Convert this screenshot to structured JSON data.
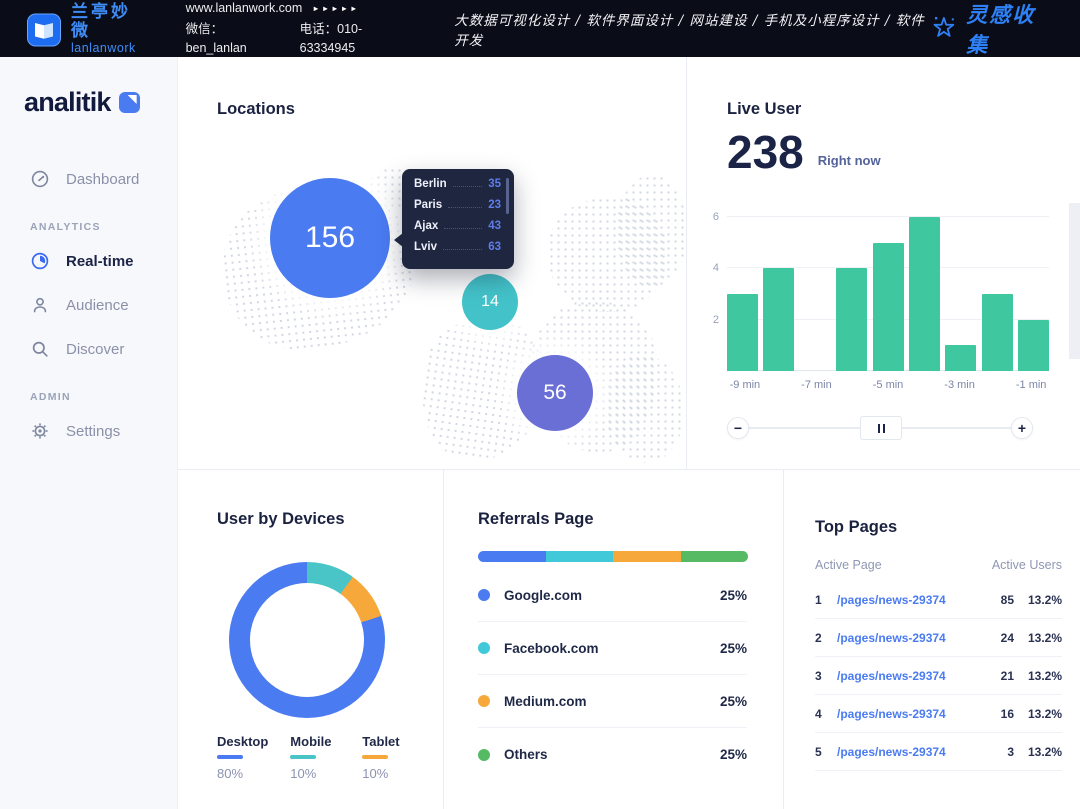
{
  "topbar": {
    "brand_cn": "兰亭妙微",
    "brand_en": "lanlanwork",
    "website": "www.lanlanwork.com",
    "arrows": "►►►►►",
    "wechat_label": "微信：ben_lanlan",
    "phone_label": "电话：010-63334945",
    "services": "大数据可视化设计 / 软件界面设计 / 网站建设 / 手机及小程序设计 / 软件开发",
    "collection": "灵感收集"
  },
  "sidebar": {
    "logo_text": "analitik",
    "items": [
      {
        "type": "link",
        "label": "Dashboard",
        "icon": "gauge",
        "active": false
      },
      {
        "type": "section",
        "label": "ANALYTICS"
      },
      {
        "type": "link",
        "label": "Real-time",
        "icon": "realtime",
        "active": true
      },
      {
        "type": "link",
        "label": "Audience",
        "icon": "person",
        "active": false
      },
      {
        "type": "link",
        "label": "Discover",
        "icon": "search",
        "active": false
      },
      {
        "type": "section",
        "label": "ADMIN"
      },
      {
        "type": "link",
        "label": "Settings",
        "icon": "gear",
        "active": false
      }
    ]
  },
  "locations": {
    "title": "Locations",
    "bubbles": [
      {
        "value": "156",
        "color": "#4a7bf0"
      },
      {
        "value": "14",
        "color": "#43c3c9"
      },
      {
        "value": "56",
        "color": "#6a6fd6"
      }
    ],
    "tooltip": {
      "rows": [
        {
          "city": "Berlin",
          "value": "35"
        },
        {
          "city": "Paris",
          "value": "23"
        },
        {
          "city": "Ajax",
          "value": "43"
        },
        {
          "city": "Lviv",
          "value": "63"
        }
      ]
    }
  },
  "live_user": {
    "title": "Live User",
    "count": "238",
    "subtitle": "Right now",
    "slider": {
      "zoom_out": "−",
      "zoom_in": "+"
    }
  },
  "devices": {
    "title": "User by Devices",
    "items": [
      {
        "name": "Desktop",
        "pct": "80%",
        "color": "#4a7bf0"
      },
      {
        "name": "Mobile",
        "pct": "10%",
        "color": "#49c5c7"
      },
      {
        "name": "Tablet",
        "pct": "10%",
        "color": "#f7a83a"
      }
    ]
  },
  "referrals": {
    "title": "Referrals Page",
    "items": [
      {
        "name": "Google.com",
        "pct": "25%",
        "color": "#4a7bf0"
      },
      {
        "name": "Facebook.com",
        "pct": "25%",
        "color": "#41c9d9"
      },
      {
        "name": "Medium.com",
        "pct": "25%",
        "color": "#f7a83a"
      },
      {
        "name": "Others",
        "pct": "25%",
        "color": "#55ba63"
      }
    ]
  },
  "top_pages": {
    "title": "Top Pages",
    "col_page": "Active Page",
    "col_users": "Active Users",
    "rows": [
      {
        "rank": "1",
        "page": "/pages/news-29374",
        "users": "85",
        "pct": "13.2%"
      },
      {
        "rank": "2",
        "page": "/pages/news-29374",
        "users": "24",
        "pct": "13.2%"
      },
      {
        "rank": "3",
        "page": "/pages/news-29374",
        "users": "21",
        "pct": "13.2%"
      },
      {
        "rank": "4",
        "page": "/pages/news-29374",
        "users": "16",
        "pct": "13.2%"
      },
      {
        "rank": "5",
        "page": "/pages/news-29374",
        "users": "3",
        "pct": "13.2%"
      }
    ]
  },
  "chart_data": [
    {
      "type": "bar",
      "title": "Live User",
      "values": [
        3,
        4,
        0,
        4,
        5,
        6,
        1,
        3,
        2
      ],
      "xticklabels": [
        "-9 min",
        "-7 min",
        "-5 min",
        "-3 min",
        "-1 min"
      ],
      "yticks": [
        2,
        4,
        6
      ],
      "ylim": [
        0,
        6
      ],
      "bar_color": "#3fc89f",
      "grid": true
    },
    {
      "type": "pie",
      "title": "User by Devices",
      "labels": [
        "Desktop",
        "Mobile",
        "Tablet"
      ],
      "values": [
        80,
        10,
        10
      ],
      "colors": [
        "#4a7bf0",
        "#49c5c7",
        "#f7a83a"
      ],
      "donut": true,
      "legend_position": "bottom"
    },
    {
      "type": "bar",
      "subtype": "stacked-progress",
      "title": "Referrals Page",
      "labels": [
        "Google.com",
        "Facebook.com",
        "Medium.com",
        "Others"
      ],
      "values": [
        25,
        25,
        25,
        25
      ],
      "colors": [
        "#4a7bf0",
        "#41c9d9",
        "#f7a83a",
        "#55ba63"
      ]
    },
    {
      "type": "table",
      "title": "Top Pages",
      "columns": [
        "Active Page",
        "Active Users"
      ],
      "rows": [
        [
          "1",
          "/pages/news-29374",
          "85",
          "13.2%"
        ],
        [
          "2",
          "/pages/news-29374",
          "24",
          "13.2%"
        ],
        [
          "3",
          "/pages/news-29374",
          "21",
          "13.2%"
        ],
        [
          "4",
          "/pages/news-29374",
          "16",
          "13.2%"
        ],
        [
          "5",
          "/pages/news-29374",
          "3",
          "13.2%"
        ]
      ]
    }
  ]
}
